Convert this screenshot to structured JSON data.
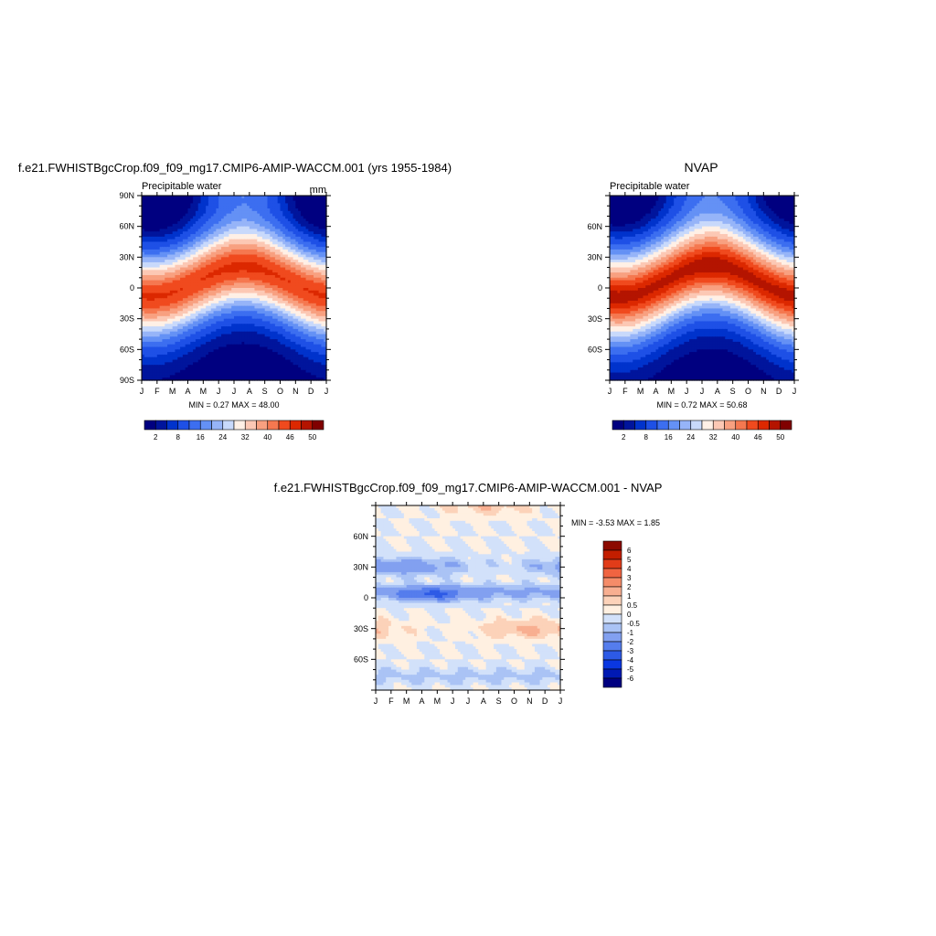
{
  "months": [
    "J",
    "F",
    "M",
    "A",
    "M",
    "J",
    "J",
    "A",
    "S",
    "O",
    "N",
    "D",
    "J"
  ],
  "palette": [
    "#000080",
    "#00159c",
    "#0033cc",
    "#1e50e6",
    "#3c6ef0",
    "#6491f5",
    "#96b4f8",
    "#c8d9fb",
    "#fff0e6",
    "#fcc8b4",
    "#f8a080",
    "#f57850",
    "#f04a1e",
    "#dc2800",
    "#b41400",
    "#800000"
  ],
  "diff_palette": [
    "#000080",
    "#0019b3",
    "#0a37e1",
    "#2d5ae6",
    "#557ded",
    "#82a0f0",
    "#aac3f5",
    "#d2e1fa",
    "#fff0e1",
    "#fcd2b9",
    "#f8af91",
    "#f58c69",
    "#f06441",
    "#e13c19",
    "#c31e00",
    "#8c0a00"
  ],
  "left_title": "f.e21.FWHISTBgcCrop.f09_f09_mg17.CMIP6-AMIP-WACCM.001 (yrs 1955-1984)",
  "right_title": "NVAP",
  "bottom_title": "f.e21.FWHISTBgcCrop.f09_f09_mg17.CMIP6-AMIP-WACCM.001 - NVAP",
  "left_plot": {
    "variable": "Precipitable water",
    "units": "mm",
    "lat_labels": [
      "90N",
      "60N",
      "30N",
      "0",
      "30S",
      "60S",
      "90S"
    ],
    "minmax": "MIN =   0.27 MAX =  48.00",
    "colorbar_ticks": [
      "2",
      "8",
      "16",
      "24",
      "32",
      "40",
      "46",
      "50"
    ]
  },
  "right_plot": {
    "variable": "Precipitable water",
    "lat_labels": [
      "60N",
      "30N",
      "0",
      "30S",
      "60S"
    ],
    "minmax": "MIN =   0.72 MAX =  50.68",
    "colorbar_ticks": [
      "2",
      "8",
      "16",
      "24",
      "32",
      "40",
      "46",
      "50"
    ]
  },
  "diff_plot": {
    "lat_labels": [
      "60N",
      "30N",
      "0",
      "30S",
      "60S"
    ],
    "minmax": "MIN =  -3.53 MAX =   1.85",
    "colorbar_labels": [
      "6",
      "5",
      "4",
      "3",
      "2",
      "1",
      "0.5",
      "0",
      "-0.5",
      "-1",
      "-2",
      "-3",
      "-4",
      "-5",
      "-6"
    ]
  },
  "chart_data": [
    {
      "type": "heatmap",
      "title": "f.e21.FWHISTBgcCrop.f09_f09_mg17.CMIP6-AMIP-WACCM.001 (yrs 1955-1984)",
      "subtitle": "Precipitable water",
      "units": "mm",
      "x": [
        "J",
        "F",
        "M",
        "A",
        "M",
        "J",
        "J",
        "A",
        "S",
        "O",
        "N",
        "D",
        "J"
      ],
      "y": [
        "90N",
        "60N",
        "30N",
        "0",
        "30S",
        "60S",
        "90S"
      ],
      "value_range": [
        0.27,
        48.0
      ],
      "contour_levels": [
        2,
        8,
        16,
        24,
        32,
        40,
        46,
        50
      ]
    },
    {
      "type": "heatmap",
      "title": "NVAP",
      "subtitle": "Precipitable water",
      "x": [
        "J",
        "F",
        "M",
        "A",
        "M",
        "J",
        "J",
        "A",
        "S",
        "O",
        "N",
        "D",
        "J"
      ],
      "y": [
        "60N",
        "30N",
        "0",
        "30S",
        "60S"
      ],
      "value_range": [
        0.72,
        50.68
      ],
      "contour_levels": [
        2,
        8,
        16,
        24,
        32,
        40,
        46,
        50
      ]
    },
    {
      "type": "heatmap",
      "title": "f.e21.FWHISTBgcCrop.f09_f09_mg17.CMIP6-AMIP-WACCM.001 - NVAP",
      "x": [
        "J",
        "F",
        "M",
        "A",
        "M",
        "J",
        "J",
        "A",
        "S",
        "O",
        "N",
        "D",
        "J"
      ],
      "y": [
        "60N",
        "30N",
        "0",
        "30S",
        "60S"
      ],
      "value_range": [
        -3.53,
        1.85
      ],
      "contour_levels": [
        -6,
        -5,
        -4,
        -3,
        -2,
        -1,
        -0.5,
        0,
        0.5,
        1,
        2,
        3,
        4,
        5,
        6
      ]
    }
  ]
}
